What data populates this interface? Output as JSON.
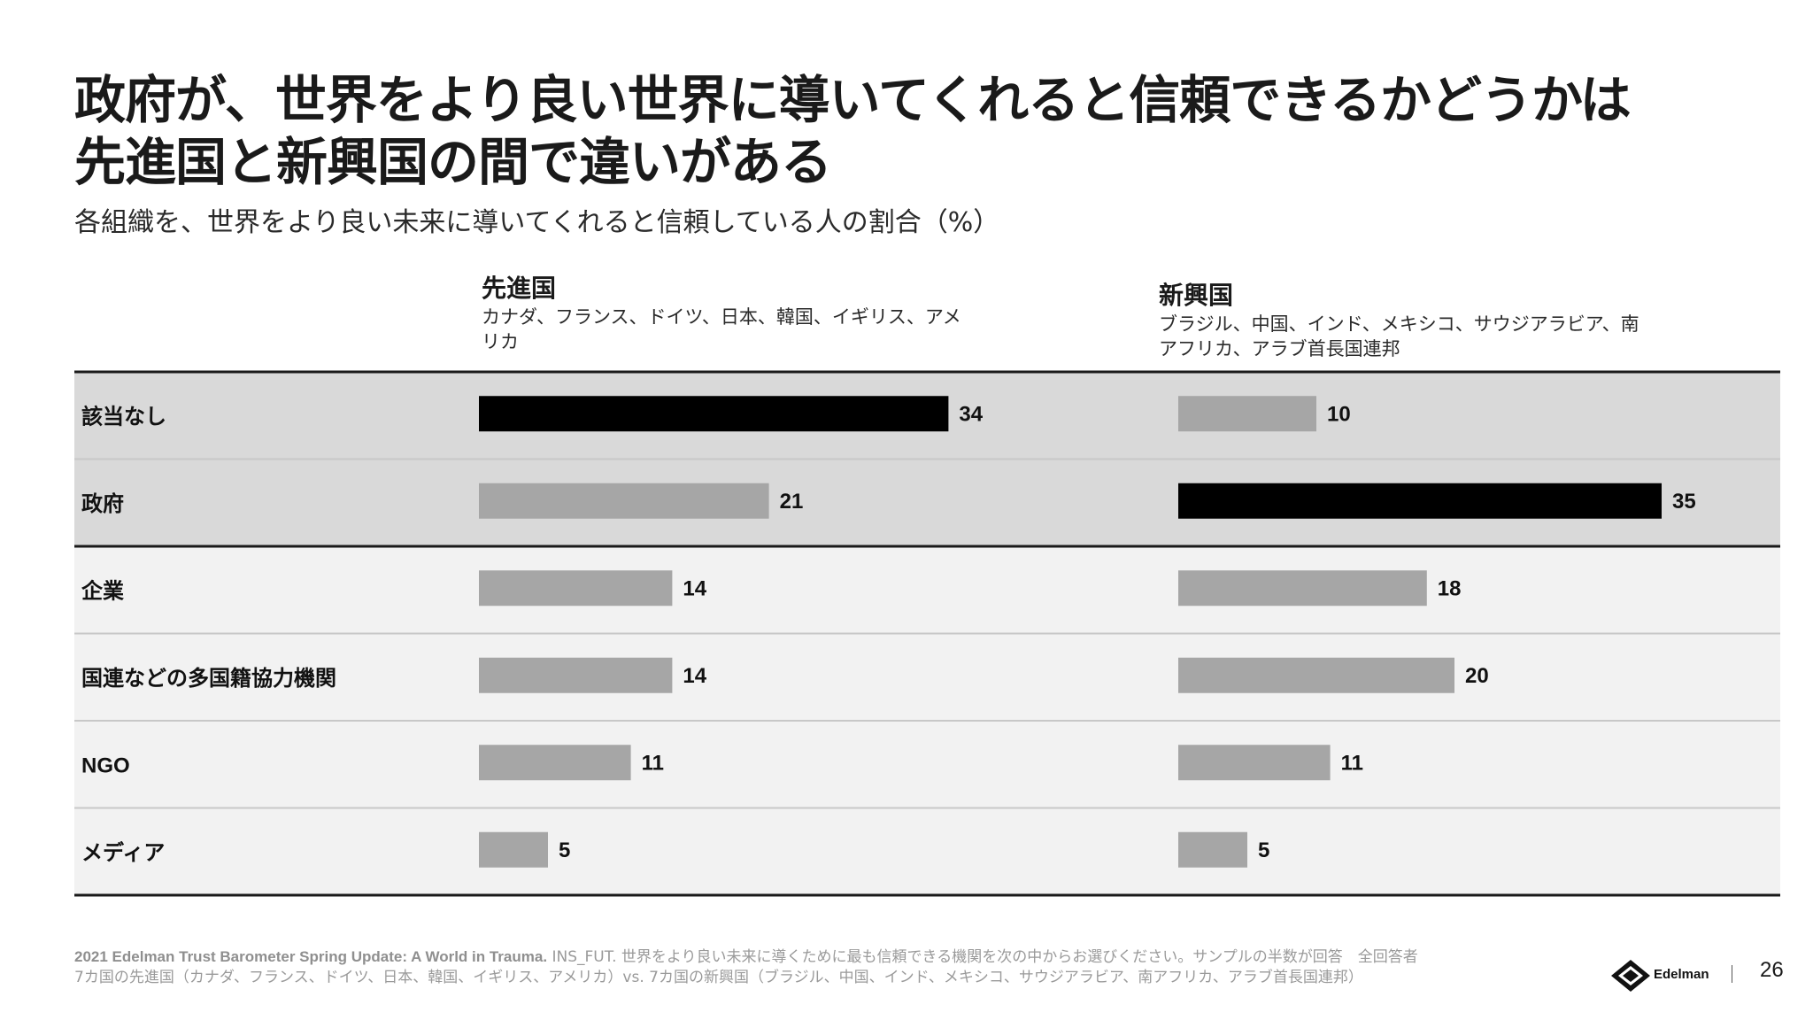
{
  "title": {
    "line1": "政府が、世界をより良い世界に導いてくれると信頼できるかどうかは",
    "line2": "先進国と新興国の間で違いがある"
  },
  "subtitle": "各組織を、世界をより良い未来に導いてくれると信頼している人の割合（%）",
  "columns": {
    "developed": {
      "name": "先進国",
      "desc": "カナダ、フランス、ドイツ、日本、韓国、イギリス、アメリカ"
    },
    "emerging": {
      "name": "新興国",
      "desc": "ブラジル、中国、インド、メキシコ、サウジアラビア、南アフリカ、アラブ首長国連邦"
    }
  },
  "chart_data": {
    "type": "bar",
    "orientation": "horizontal",
    "categories": [
      "該当なし",
      "政府",
      "企業",
      "国連などの多国籍協力機関",
      "NGO",
      "メディア"
    ],
    "series": [
      {
        "name": "先進国",
        "values": [
          34,
          21,
          14,
          14,
          11,
          5
        ],
        "highlight_index": 0
      },
      {
        "name": "新興国",
        "values": [
          10,
          35,
          18,
          20,
          11,
          5
        ],
        "highlight_index": 1
      }
    ],
    "colors": {
      "bar_default": "#a6a6a6",
      "bar_highlight": "#000000",
      "row_band_dark": "#d9d9d9",
      "row_band_light": "#f2f2f2",
      "rule": "#1a1a1a",
      "separator": "#c8c8c8"
    },
    "xlim": [
      0,
      35
    ]
  },
  "footnote": {
    "source": "2021 Edelman Trust Barometer Spring Update: A World in Trauma.",
    "line1": " INS_FUT. 世界をより良い未来に導くために最も信頼できる機関を次の中からお選びください。サンプルの半数が回答　全回答者",
    "line2": "7カ国の先進国（カナダ、フランス、ドイツ、日本、韓国、イギリス、アメリカ）vs. 7カ国の新興国（ブラジル、中国、インド、メキシコ、サウジアラビア、南アフリカ、アラブ首長国連邦）"
  },
  "brand": {
    "name": "Edelman"
  },
  "page_number": "26"
}
